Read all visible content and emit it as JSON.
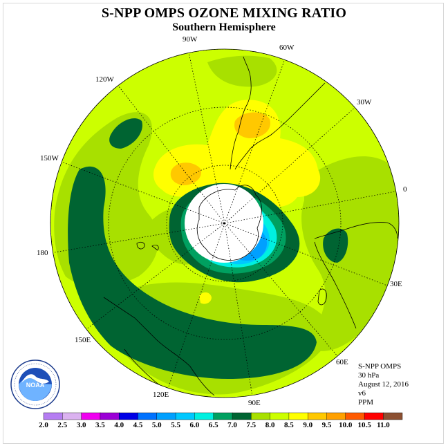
{
  "title": "S-NPP OMPS OZONE MIXING RATIO",
  "subtitle": "Southern Hemisphere",
  "longitude_labels": {
    "w90": "90W",
    "w60": "60W",
    "w30": "30W",
    "e0": "0",
    "e30": "30E",
    "e60": "60E",
    "e90": "90E",
    "e120": "120E",
    "e150": "150E",
    "e180": "180",
    "w150": "150W",
    "w120": "120W"
  },
  "info": {
    "instrument": "S-NPP OMPS",
    "level": "30 hPa",
    "date": "August 12, 2016",
    "version": "v6",
    "unit": "PPM"
  },
  "logo": {
    "text": "NOAA",
    "icon": "noaa-logo-icon"
  },
  "legend": {
    "ticks": [
      "2.0",
      "2.5",
      "3.0",
      "3.5",
      "4.0",
      "4.5",
      "5.0",
      "5.5",
      "6.0",
      "6.5",
      "7.0",
      "7.5",
      "8.0",
      "8.5",
      "9.0",
      "9.5",
      "10.0",
      "10.5",
      "11.0"
    ],
    "colors": [
      "#b57df2",
      "#dbb2f0",
      "#f000f0",
      "#9b00d6",
      "#0000e6",
      "#0072ff",
      "#00a0ff",
      "#00c8ff",
      "#00f0e0",
      "#00a060",
      "#006432",
      "#a8e000",
      "#ccff00",
      "#ffff00",
      "#ffc800",
      "#ffa000",
      "#ff5a00",
      "#ff0000",
      "#8c5032"
    ]
  }
}
